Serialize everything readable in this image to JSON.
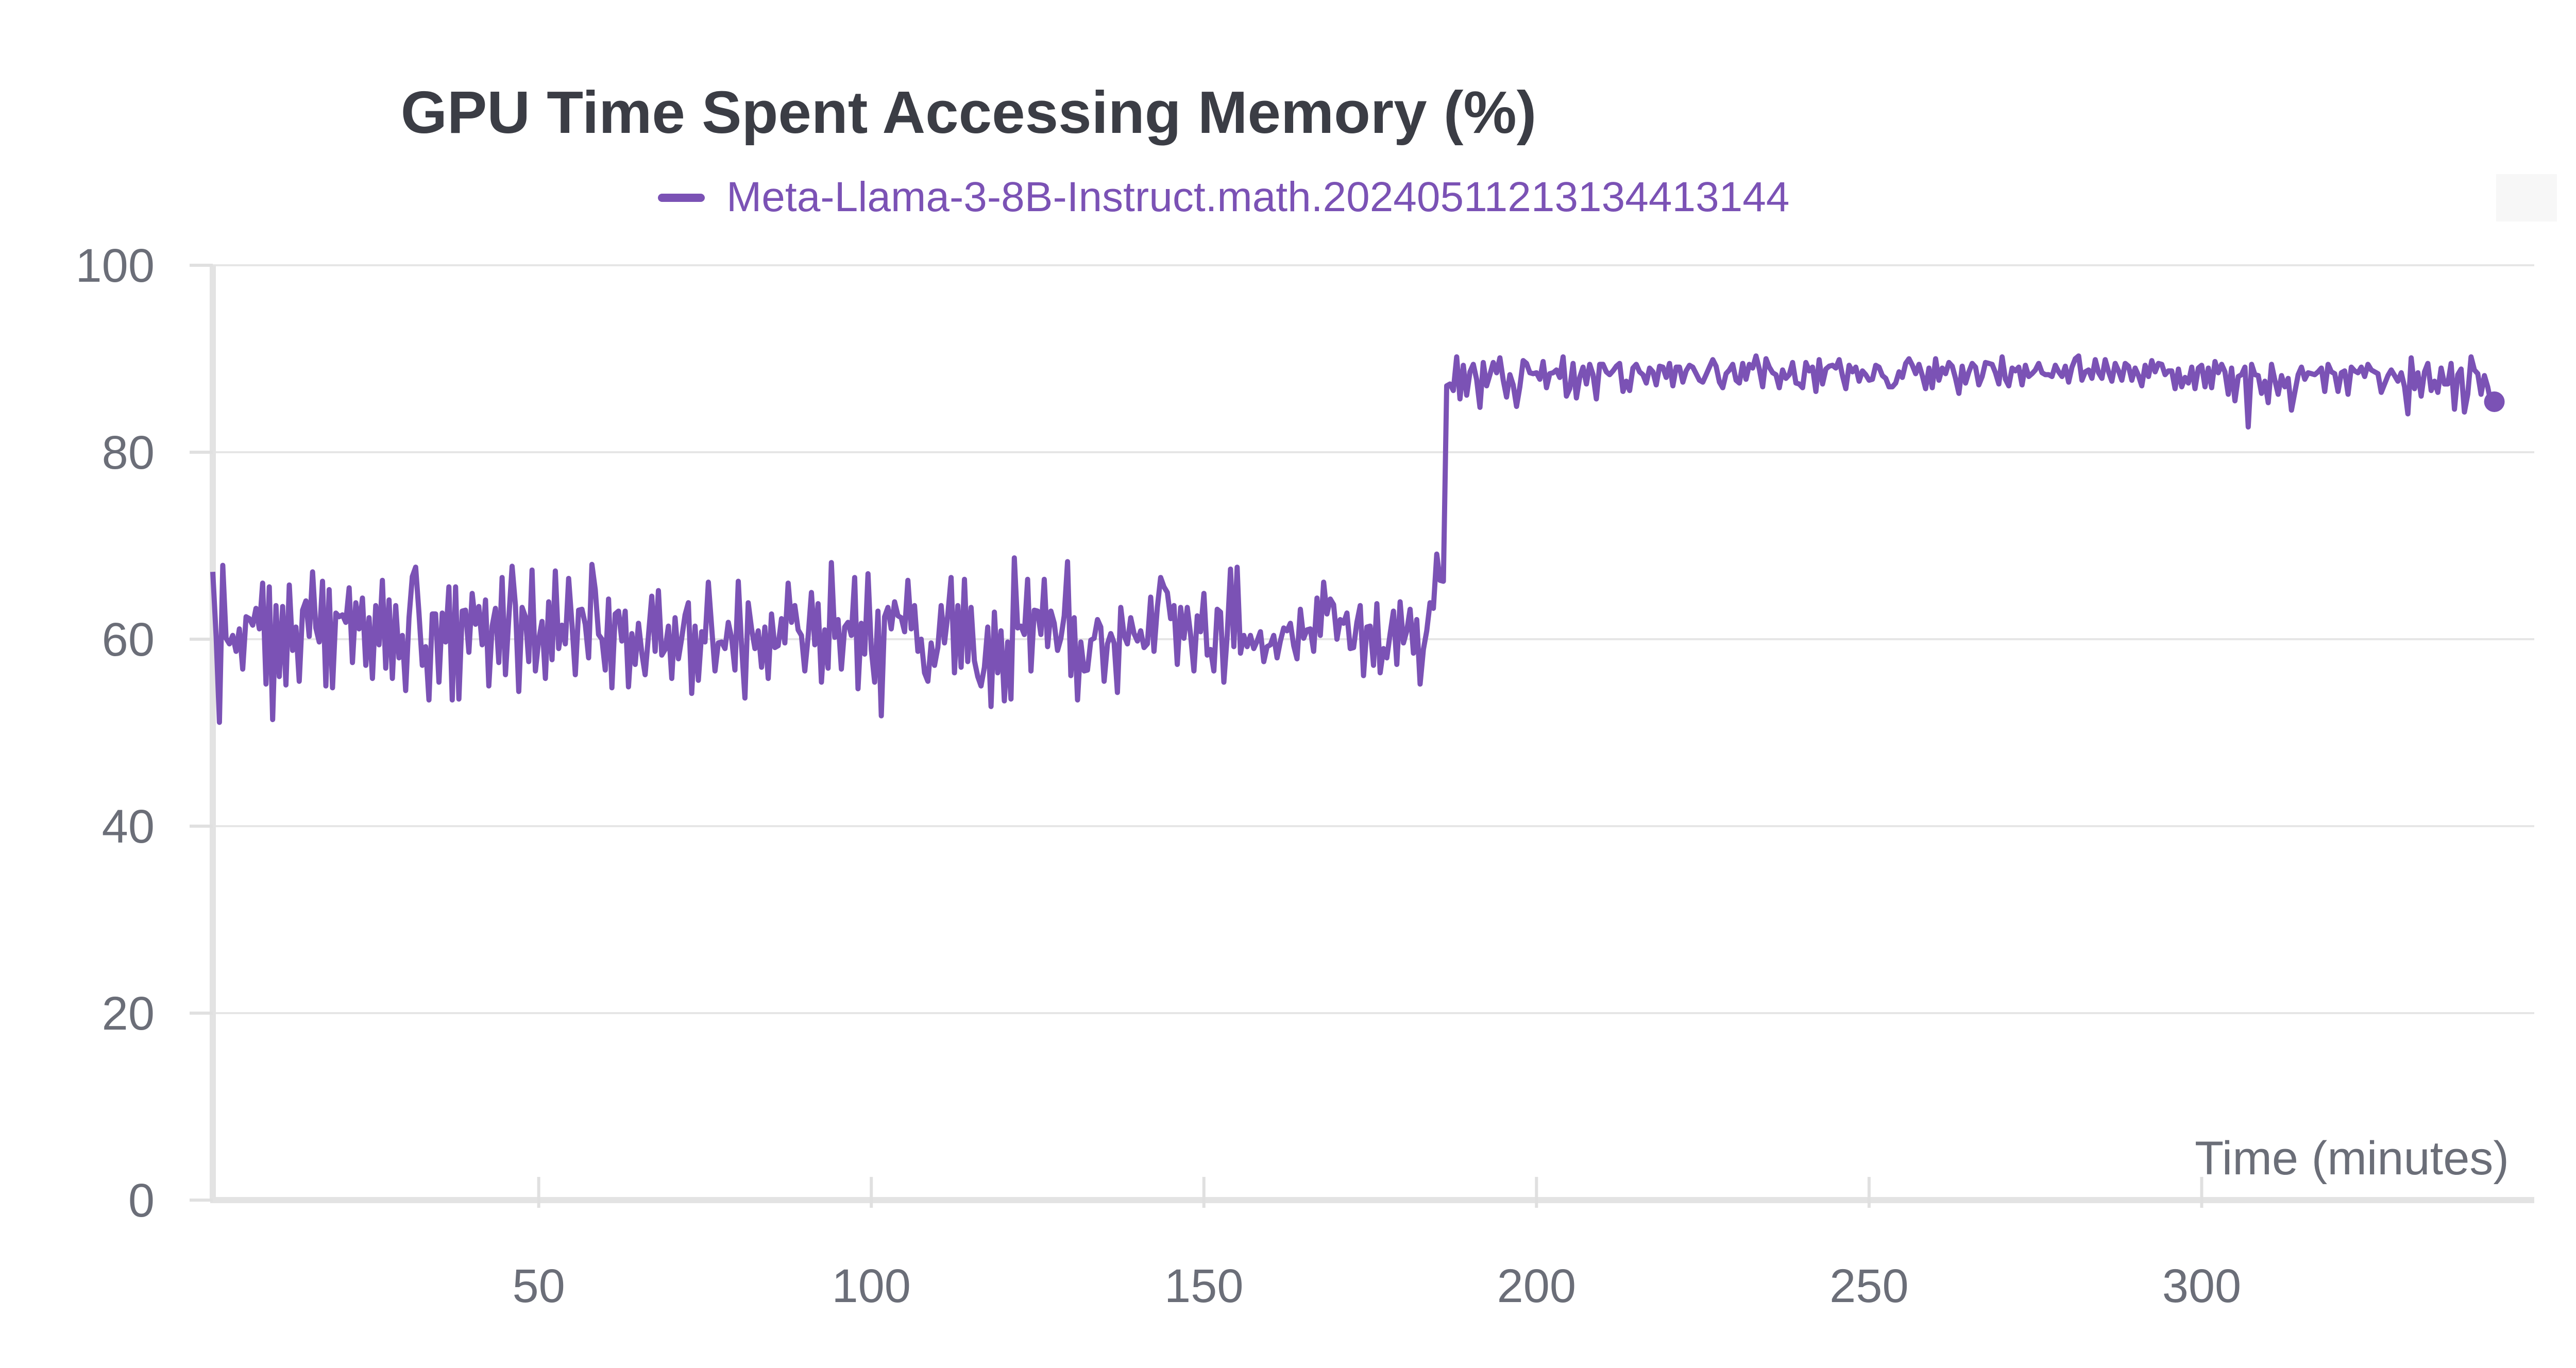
{
  "chart_data": {
    "type": "line",
    "title": "GPU Time Spent Accessing Memory (%)",
    "xlabel": "Time (minutes)",
    "ylabel": "",
    "xlim": [
      1,
      350
    ],
    "ylim": [
      0,
      100
    ],
    "xticks": [
      50,
      100,
      150,
      200,
      250,
      300
    ],
    "yticks": [
      0,
      20,
      40,
      60,
      80,
      100
    ],
    "grid": true,
    "legend_position": "top-center",
    "colors": {
      "series": "#7b52b5",
      "grid": "#e6e6e6",
      "axis": "#e0e0e0",
      "text": "#6b6e78",
      "title": "#3b3d45"
    },
    "series": [
      {
        "name": "Meta-Llama-3-8B-Instruct.math.20240511213134413144",
        "x_start": 1,
        "x_step": 0.5,
        "values": [
          67.2,
          60.3,
          51.1,
          67.9,
          60.1,
          59.5,
          60.4,
          58.7,
          61.1,
          56.8,
          62.4,
          62.2,
          61.5,
          63.3,
          61.1,
          66.0,
          55.2,
          65.6,
          51.4,
          63.6,
          56.0,
          63.5,
          55.1,
          65.8,
          58.8,
          61.3,
          55.5,
          63.1,
          64.1,
          60.3,
          67.2,
          61.2,
          59.7,
          66.2,
          55.0,
          65.3,
          54.8,
          62.8,
          62.4,
          62.6,
          61.8,
          65.5,
          57.5,
          63.9,
          61.1,
          64.4,
          57.2,
          62.3,
          55.8,
          63.6,
          59.4,
          66.3,
          56.9,
          64.2,
          55.8,
          63.6,
          58.0,
          60.4,
          54.5,
          62.3,
          66.7,
          67.7,
          62.8,
          57.2,
          59.2,
          53.5,
          62.7,
          62.7,
          55.4,
          62.8,
          59.7,
          65.6,
          53.5,
          65.6,
          53.6,
          63.0,
          63.1,
          58.6,
          64.9,
          61.6,
          63.5,
          59.4,
          64.2,
          55.0,
          61.4,
          63.3,
          57.5,
          66.6,
          56.2,
          62.2,
          67.8,
          63.6,
          54.4,
          63.4,
          62.4,
          57.6,
          67.4,
          56.6,
          59.9,
          61.9,
          55.8,
          64.0,
          57.8,
          67.3,
          59.0,
          61.5,
          59.5,
          66.5,
          61.6,
          56.2,
          63.1,
          63.2,
          61.6,
          58.0,
          68.0,
          65.3,
          60.5,
          60.0,
          56.7,
          64.3,
          54.8,
          62.7,
          63.0,
          59.8,
          63.0,
          54.9,
          60.6,
          57.3,
          61.7,
          58.5,
          56.2,
          60.4,
          64.6,
          58.7,
          65.2,
          58.3,
          58.9,
          61.4,
          55.8,
          62.3,
          57.9,
          60.1,
          62.6,
          63.9,
          54.2,
          61.4,
          55.6,
          60.8,
          59.7,
          66.1,
          61.3,
          56.6,
          59.6,
          59.7,
          59.0,
          61.8,
          60.1,
          56.7,
          66.2,
          59.3,
          53.7,
          63.9,
          61.1,
          59.0,
          60.9,
          57.0,
          61.3,
          55.8,
          62.7,
          59.1,
          59.3,
          62.2,
          59.6,
          66.0,
          61.8,
          63.6,
          61.0,
          60.4,
          56.6,
          60.3,
          65.0,
          59.4,
          63.8,
          55.4,
          61.0,
          56.9,
          68.2,
          60.2,
          62.1,
          56.8,
          61.3,
          61.8,
          60.4,
          66.6,
          54.7,
          61.7,
          58.4,
          67.0,
          58.9,
          55.4,
          63.0,
          51.8,
          62.4,
          63.4,
          61.1,
          64.0,
          62.5,
          62.3,
          60.8,
          66.3,
          61.1,
          63.6,
          58.7,
          60.0,
          56.4,
          55.5,
          59.6,
          57.2,
          59.1,
          63.6,
          59.6,
          62.6,
          66.6,
          56.4,
          63.6,
          57.0,
          66.4,
          57.6,
          63.4,
          57.7,
          56.0,
          55.0,
          57.0,
          61.3,
          52.8,
          62.9,
          56.4,
          60.9,
          53.4,
          59.7,
          53.6,
          68.7,
          61.2,
          61.4,
          60.5,
          66.4,
          56.6,
          63.1,
          63.0,
          60.5,
          66.4,
          59.2,
          63.0,
          61.7,
          58.8,
          60.1,
          62.5,
          68.3,
          56.1,
          62.3,
          53.5,
          59.7,
          56.6,
          56.7,
          59.9,
          60.1,
          62.1,
          61.3,
          55.5,
          59.5,
          60.6,
          59.6,
          54.3,
          63.4,
          60.4,
          59.5,
          62.3,
          60.6,
          59.8,
          60.9,
          59.1,
          59.5,
          64.5,
          58.7,
          63.4,
          66.6,
          65.6,
          65.0,
          62.2,
          63.6,
          57.3,
          63.4,
          60.1,
          63.4,
          60.5,
          56.6,
          62.5,
          60.8,
          64.9,
          58.3,
          58.9,
          56.6,
          63.2,
          62.9,
          55.4,
          60.4,
          67.5,
          59.2,
          67.7,
          58.5,
          60.4,
          59.2,
          60.4,
          59.0,
          59.8,
          60.8,
          57.6,
          59.2,
          59.4,
          60.4,
          58.0,
          59.8,
          61.2,
          60.9,
          61.7,
          59.3,
          57.9,
          63.2,
          60.1,
          61.0,
          61.1,
          58.7,
          64.4,
          60.4,
          66.1,
          62.7,
          64.3,
          63.7,
          60.0,
          62.1,
          61.7,
          62.8,
          59.0,
          59.1,
          61.8,
          63.6,
          56.1,
          61.3,
          61.4,
          57.2,
          63.8,
          56.4,
          59.0,
          58.0,
          60.6,
          63.0,
          57.3,
          64.0,
          59.6,
          60.9,
          63.2,
          58.5,
          62.1,
          55.2,
          58.9,
          60.9,
          63.9,
          63.3,
          69.1,
          66.3,
          66.2,
          87.1,
          87.3,
          86.6,
          90.2,
          85.7,
          89.3,
          86.1,
          88.6,
          89.4,
          87.8,
          84.8,
          89.6,
          87.1,
          88.3,
          89.6,
          88.5,
          90.1,
          87.7,
          85.9,
          88.3,
          87.2,
          84.9,
          87.0,
          89.8,
          89.5,
          88.5,
          88.4,
          88.5,
          87.8,
          89.7,
          86.9,
          88.4,
          88.5,
          88.8,
          88.0,
          90.2,
          86.0,
          86.8,
          89.5,
          85.8,
          88.0,
          89.1,
          87.3,
          89.4,
          88.3,
          85.7,
          89.4,
          89.4,
          88.6,
          88.3,
          88.7,
          89.2,
          89.5,
          86.5,
          87.6,
          86.6,
          89.0,
          89.4,
          88.6,
          88.3,
          87.4,
          89.0,
          88.6,
          87.2,
          89.2,
          89.1,
          88.0,
          89.5,
          87.1,
          89.1,
          89.1,
          87.5,
          88.7,
          89.3,
          89.1,
          88.4,
          87.7,
          87.5,
          88.3,
          89.1,
          89.9,
          89.2,
          87.5,
          86.9,
          88.4,
          88.8,
          89.4,
          87.7,
          87.4,
          89.5,
          87.8,
          89.4,
          89.0,
          90.3,
          88.9,
          87.0,
          90.0,
          89.1,
          88.5,
          88.3,
          86.9,
          88.8,
          87.9,
          88.3,
          89.6,
          87.4,
          87.3,
          86.9,
          89.6,
          88.7,
          89.1,
          86.5,
          89.9,
          87.3,
          88.9,
          89.2,
          89.3,
          89.0,
          89.9,
          88.2,
          86.8,
          89.3,
          88.6,
          89.1,
          87.6,
          88.7,
          88.3,
          87.7,
          87.8,
          89.3,
          89.1,
          88.2,
          87.9,
          87.0,
          87.0,
          87.4,
          88.6,
          88.0,
          89.5,
          90.0,
          89.3,
          88.4,
          89.4,
          88.2,
          86.8,
          89.0,
          86.9,
          90.0,
          87.7,
          89.0,
          88.4,
          89.6,
          89.2,
          87.9,
          86.3,
          89.2,
          87.4,
          88.6,
          89.5,
          89.1,
          87.2,
          88.1,
          89.6,
          89.5,
          89.4,
          88.5,
          87.3,
          90.2,
          87.8,
          87.1,
          89.0,
          88.7,
          89.1,
          87.2,
          89.3,
          88.1,
          88.4,
          88.8,
          89.5,
          88.5,
          88.3,
          88.3,
          88.1,
          89.3,
          88.6,
          88.1,
          89.2,
          87.5,
          89.1,
          90.0,
          90.3,
          87.7,
          88.6,
          88.8,
          87.9,
          89.9,
          88.5,
          87.9,
          89.9,
          88.6,
          87.6,
          89.5,
          88.7,
          87.7,
          89.5,
          89.2,
          87.7,
          89.0,
          88.2,
          87.1,
          89.3,
          88.1,
          89.8,
          88.6,
          89.5,
          89.4,
          88.3,
          88.7,
          88.7,
          86.8,
          88.9,
          87.0,
          88.0,
          87.4,
          89.1,
          86.8,
          89.0,
          89.3,
          87.0,
          89.0,
          86.9,
          89.7,
          88.5,
          89.4,
          88.6,
          86.2,
          89.0,
          85.5,
          88.1,
          88.3,
          89.1,
          82.7,
          89.4,
          88.3,
          88.2,
          86.3,
          87.6,
          85.3,
          89.4,
          87.7,
          86.2,
          88.2,
          87.0,
          87.9,
          84.5,
          86.4,
          88.3,
          89.1,
          87.8,
          88.5,
          88.4,
          88.3,
          88.6,
          89.0,
          86.5,
          89.4,
          88.6,
          88.4,
          86.5,
          88.5,
          88.7,
          86.2,
          89.1,
          88.7,
          88.5,
          89.1,
          88.1,
          89.4,
          88.8,
          88.6,
          88.4,
          86.4,
          87.3,
          88.2,
          88.8,
          88.2,
          87.6,
          88.5,
          87.0,
          84.1,
          90.1,
          86.8,
          88.5,
          86.0,
          88.6,
          89.5,
          86.6,
          87.6,
          86.4,
          89.0,
          87.3,
          87.3,
          89.5,
          84.6,
          88.3,
          88.9,
          84.3,
          86.2,
          90.2,
          88.8,
          88.4,
          86.2,
          88.2,
          87.0,
          85.2,
          85.4
        ]
      }
    ]
  }
}
